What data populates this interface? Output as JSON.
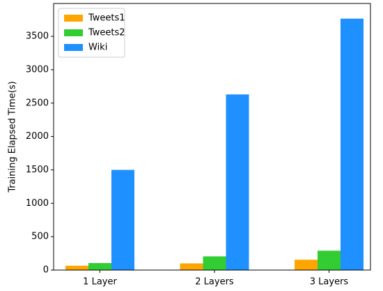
{
  "chart_data": {
    "type": "bar",
    "ylabel": "Training Elapsed Time(s)",
    "categories": [
      "1 Layer",
      "2 Layers",
      "3 Layers"
    ],
    "series": [
      {
        "name": "Tweets1",
        "color": "#ffa500",
        "values": [
          65,
          100,
          155
        ]
      },
      {
        "name": "Tweets2",
        "color": "#32cd32",
        "values": [
          105,
          205,
          290
        ]
      },
      {
        "name": "Wiki",
        "color": "#1e90ff",
        "values": [
          1500,
          2630,
          3765
        ]
      }
    ],
    "ylim": [
      0,
      3950
    ],
    "yticks": [
      0,
      500,
      1000,
      1500,
      2000,
      2500,
      3000,
      3500
    ],
    "legend": "upper left"
  }
}
